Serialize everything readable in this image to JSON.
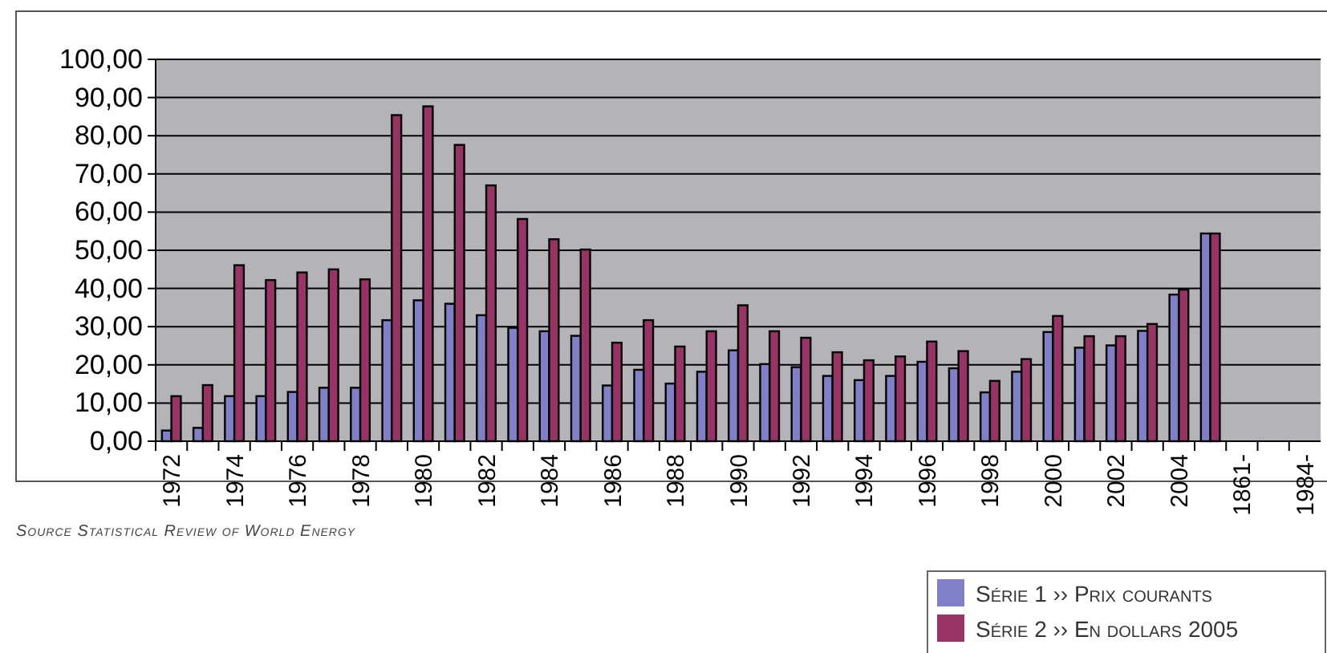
{
  "chart_data": {
    "type": "bar",
    "categories": [
      "1972",
      null,
      "1974",
      null,
      "1976",
      null,
      "1978",
      null,
      "1980",
      null,
      "1982",
      null,
      "1984",
      null,
      "1986",
      null,
      "1988",
      null,
      "1990",
      null,
      "1992",
      null,
      "1994",
      null,
      "1996",
      null,
      "1998",
      null,
      "2000",
      null,
      "2002",
      null,
      "2004",
      null,
      "1861-",
      null,
      "1984-"
    ],
    "series": [
      {
        "name": "Série 1 ›› Prix courants",
        "color": "#8080c8",
        "values": [
          2.8,
          3.5,
          11.8,
          11.8,
          12.9,
          14.0,
          14.0,
          31.7,
          36.9,
          36.0,
          33.0,
          29.7,
          28.8,
          27.6,
          14.6,
          18.7,
          15.1,
          18.2,
          23.8,
          20.2,
          19.4,
          17.1,
          16.0,
          17.1,
          20.8,
          19.1,
          12.8,
          18.2,
          28.6,
          24.5,
          25.1,
          28.9,
          38.4,
          54.4,
          null,
          null,
          null
        ]
      },
      {
        "name": "Série 2 ›› En dollars 2005",
        "color": "#993366",
        "values": [
          11.8,
          14.7,
          46.1,
          42.2,
          44.2,
          45.0,
          42.4,
          85.4,
          87.7,
          77.6,
          67.0,
          58.2,
          52.9,
          50.2,
          25.8,
          31.7,
          24.8,
          28.8,
          35.6,
          28.8,
          27.1,
          23.3,
          21.2,
          22.2,
          26.1,
          23.6,
          15.8,
          21.5,
          32.8,
          27.5,
          27.5,
          30.7,
          39.7,
          54.4,
          null,
          null,
          null
        ]
      }
    ],
    "ylim": [
      0,
      100
    ],
    "yticks": [
      {
        "value": 0,
        "label": "0,00"
      },
      {
        "value": 10,
        "label": "10,00"
      },
      {
        "value": 20,
        "label": "20,00"
      },
      {
        "value": 30,
        "label": "30,00"
      },
      {
        "value": 40,
        "label": "40,00"
      },
      {
        "value": 50,
        "label": "50,00"
      },
      {
        "value": 60,
        "label": "60,00"
      },
      {
        "value": 70,
        "label": "70,00"
      },
      {
        "value": 80,
        "label": "80,00"
      },
      {
        "value": 90,
        "label": "90,00"
      },
      {
        "value": 100,
        "label": "100,00"
      }
    ],
    "grid": "y",
    "legend": "bottom right",
    "annotations": [
      "Source Statistical Review of World Energy"
    ]
  }
}
